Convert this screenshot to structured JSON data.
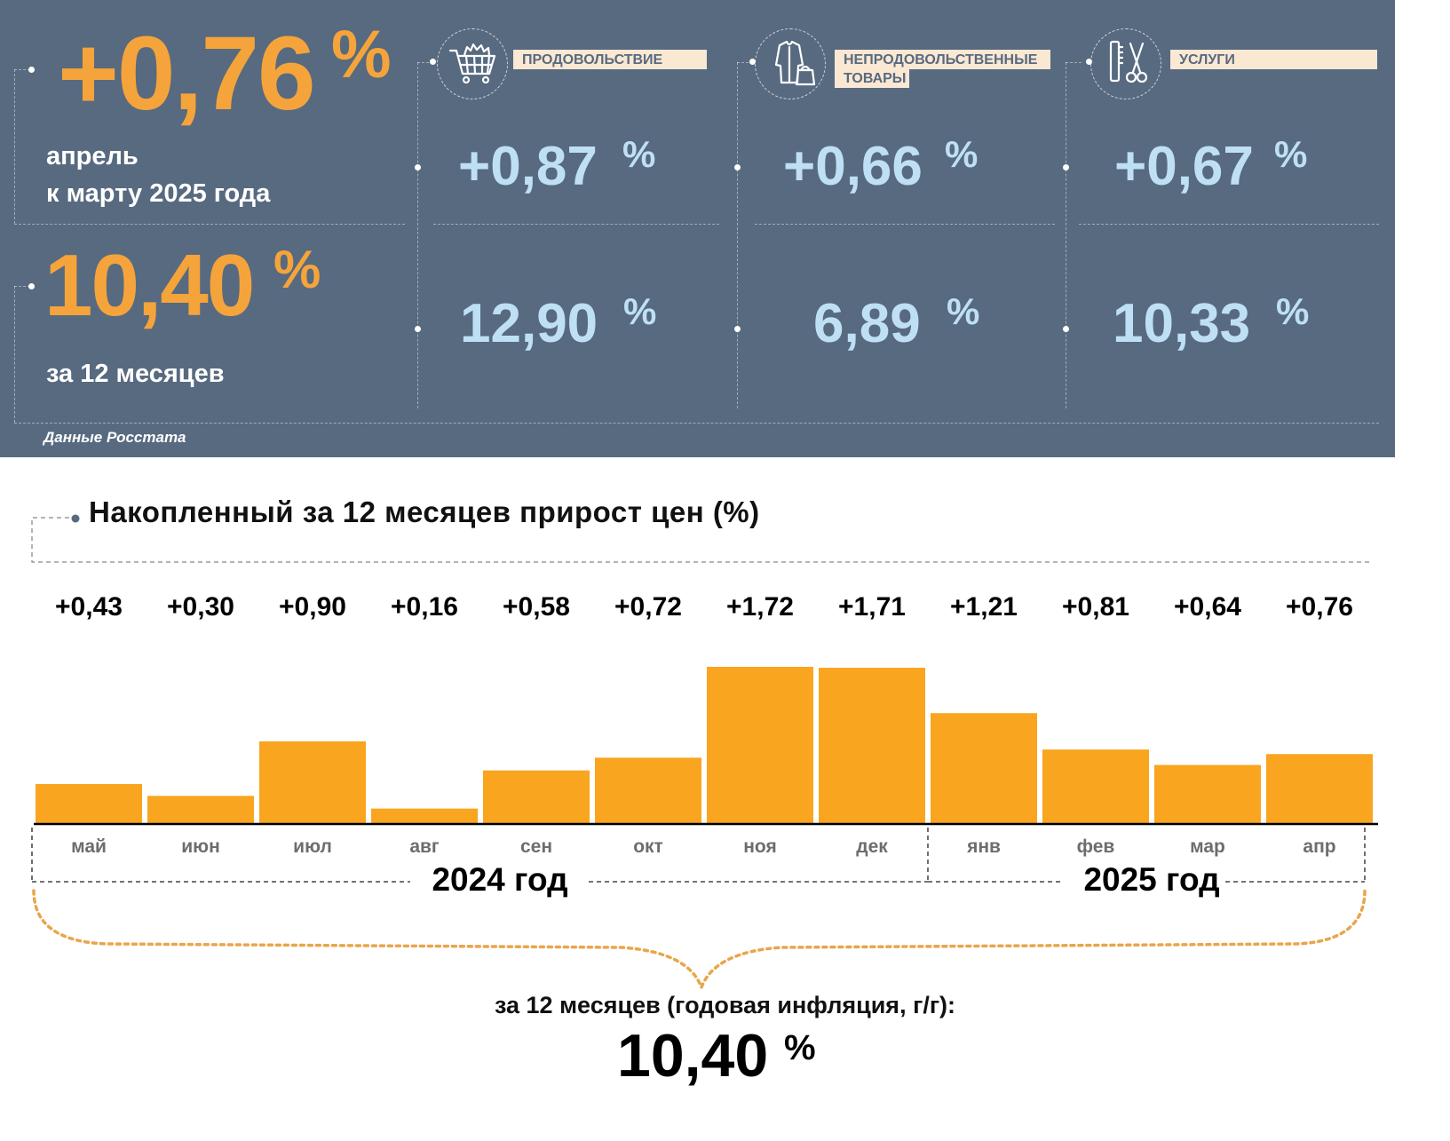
{
  "header": {
    "month_change": {
      "value": "+0,76",
      "unit": "%",
      "caption_line1": "апрель",
      "caption_line2": "к марту 2025 года"
    },
    "year_change": {
      "value": "10,40",
      "unit": "%",
      "caption": "за 12 месяцев"
    },
    "categories": [
      {
        "icon": "shopping-cart-icon",
        "label": "ПРОДОВОЛЬСТВИЕ",
        "month_value": "+0,87",
        "year_value": "12,90",
        "unit": "%"
      },
      {
        "icon": "clothing-bag-icon",
        "label_line1": "НЕПРОДОВОЛЬСТВЕННЫЕ",
        "label_line2": "ТОВАРЫ",
        "month_value": "+0,66",
        "year_value": "6,89",
        "unit": "%"
      },
      {
        "icon": "comb-scissors-icon",
        "label": "УСЛУГИ",
        "month_value": "+0,67",
        "year_value": "10,33",
        "unit": "%"
      }
    ],
    "source": "Данные Росстата"
  },
  "colors": {
    "panel": "#576a80",
    "orange": "#f5a43b",
    "light_blue": "#bfe0f4",
    "bar": "#f9a51f",
    "label_bg": "#fbe8d3"
  },
  "chart_data": {
    "type": "bar",
    "title": "Накопленный за 12 месяцев прирост цен (%)",
    "categories": [
      "май",
      "июн",
      "июл",
      "авг",
      "сен",
      "окт",
      "ноя",
      "дек",
      "янв",
      "фев",
      "мар",
      "апр"
    ],
    "values": [
      0.43,
      0.3,
      0.9,
      0.16,
      0.58,
      0.72,
      1.72,
      1.71,
      1.21,
      0.81,
      0.64,
      0.76
    ],
    "value_labels": [
      "+0,43",
      "+0,30",
      "+0,90",
      "+0,16",
      "+0,58",
      "+0,72",
      "+1,72",
      "+1,71",
      "+1,21",
      "+0,81",
      "+0,64",
      "+0,76"
    ],
    "year_groups": [
      {
        "label": "2024 год",
        "months": 8
      },
      {
        "label": "2025 год",
        "months": 4
      }
    ],
    "ylim": [
      0,
      1.72
    ],
    "grid": false,
    "total_label": "за 12 месяцев (годовая инфляция, г/г):",
    "total_value": "10,40",
    "total_unit": "%"
  }
}
